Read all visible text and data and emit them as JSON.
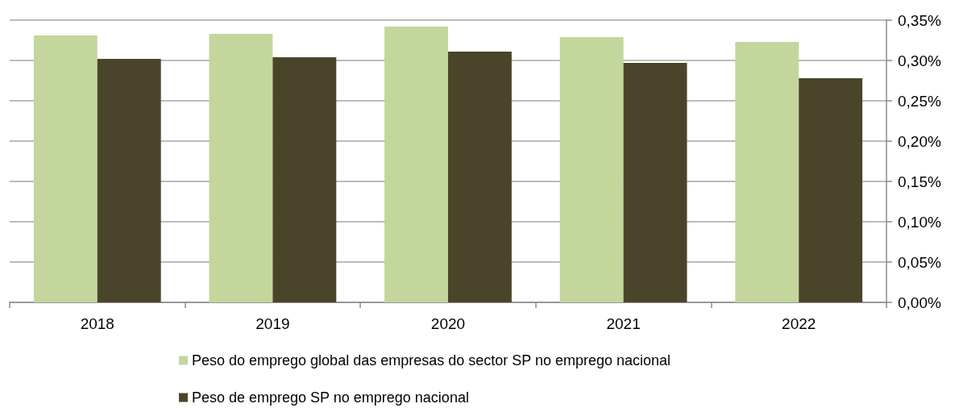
{
  "chart_data": {
    "type": "bar",
    "categories": [
      "2018",
      "2019",
      "2020",
      "2021",
      "2022"
    ],
    "series": [
      {
        "name": "Peso do emprego global das empresas do sector SP no emprego nacional",
        "color": "#c3d69b",
        "values": [
          0.331,
          0.333,
          0.342,
          0.329,
          0.323
        ]
      },
      {
        "name": "Peso de emprego SP no emprego nacional",
        "color": "#4a452a",
        "values": [
          0.302,
          0.304,
          0.311,
          0.297,
          0.278
        ]
      }
    ],
    "ylim": [
      0,
      0.35
    ],
    "yticks": [
      {
        "value": 0,
        "label": "0,00%"
      },
      {
        "value": 0.05,
        "label": "0,05%"
      },
      {
        "value": 0.1,
        "label": "0,10%"
      },
      {
        "value": 0.15,
        "label": "0,15%"
      },
      {
        "value": 0.2,
        "label": "0,20%"
      },
      {
        "value": 0.25,
        "label": "0,25%"
      },
      {
        "value": 0.3,
        "label": "0,30%"
      },
      {
        "value": 0.35,
        "label": "0,35%"
      }
    ],
    "grid": "y",
    "legend": "bottom"
  }
}
